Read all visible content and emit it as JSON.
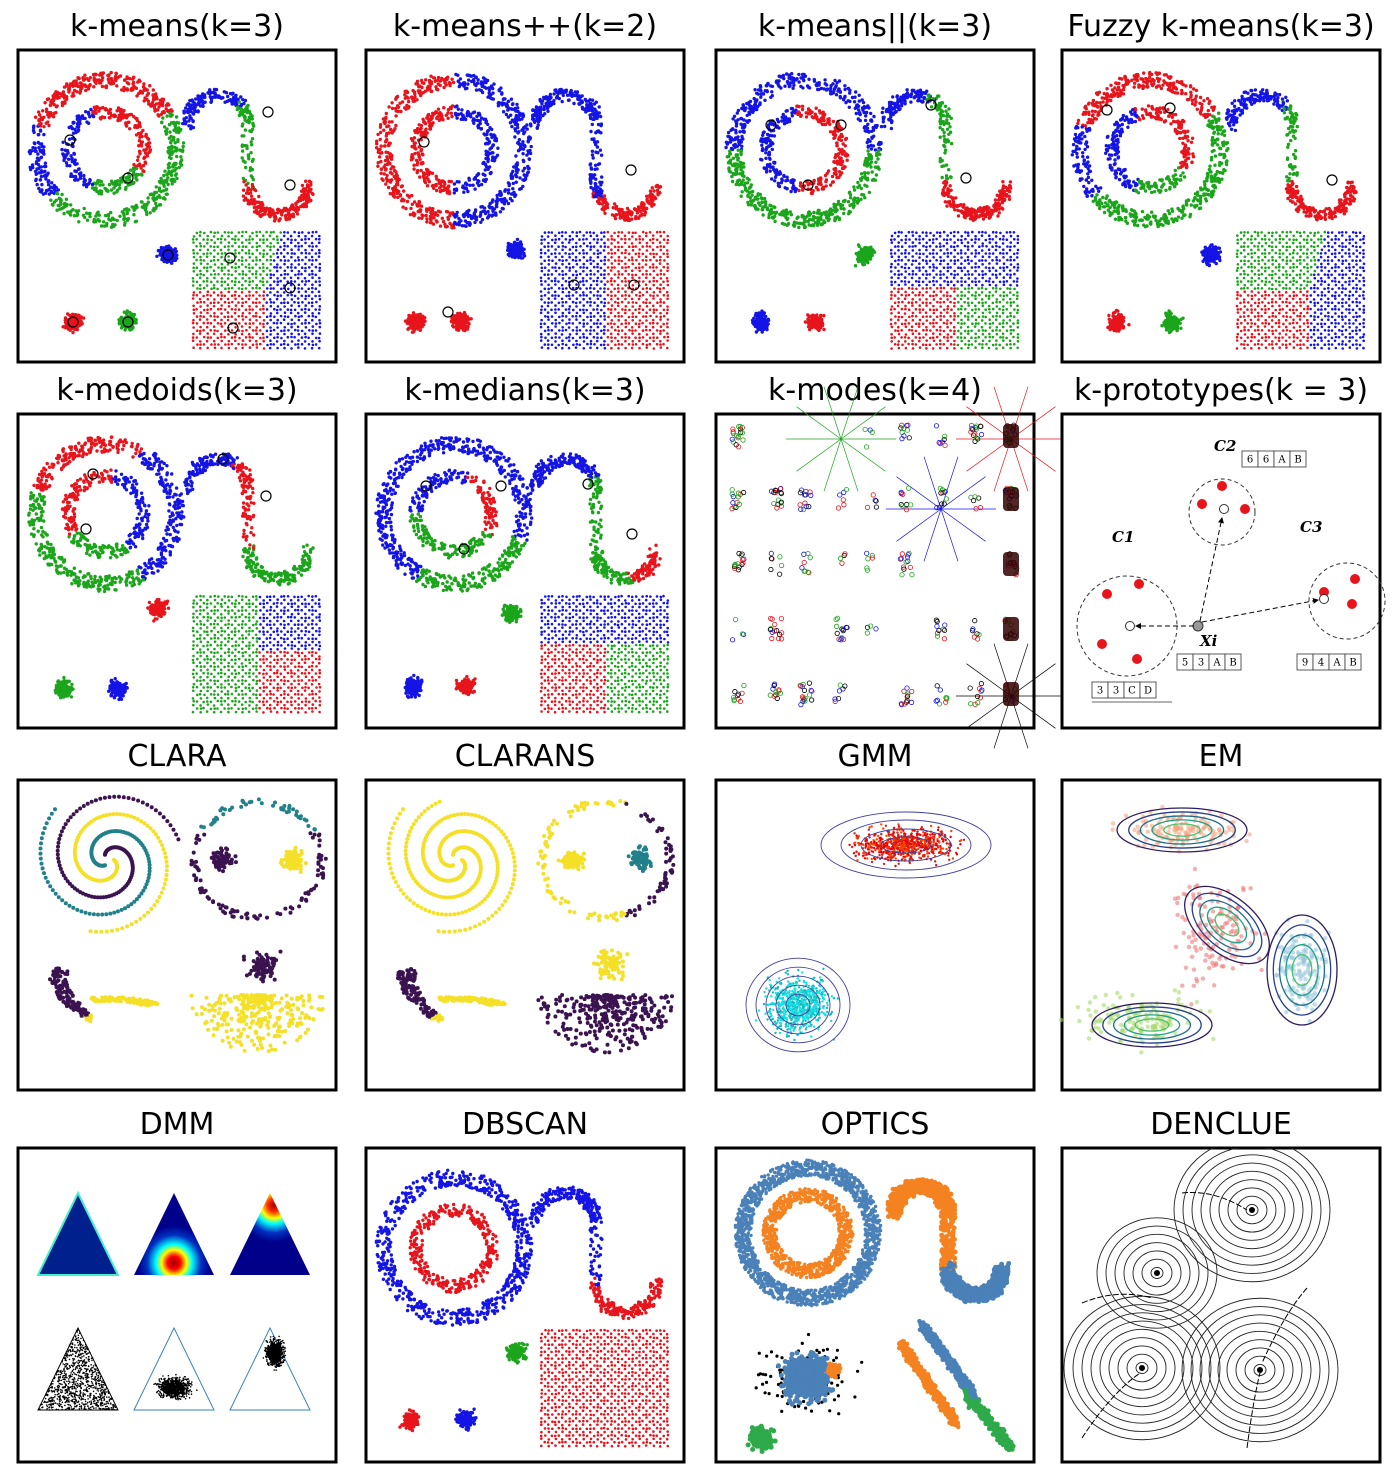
{
  "panels": [
    {
      "title": "k-means(k=3)"
    },
    {
      "title": "k-means++(k=2)"
    },
    {
      "title": "k-means||(k=3)"
    },
    {
      "title": "Fuzzy k-means(k=3)"
    },
    {
      "title": "k-medoids(k=3)"
    },
    {
      "title": "k-medians(k=3)"
    },
    {
      "title": "k-modes(k=4)"
    },
    {
      "title": "k-prototypes(k = 3)"
    },
    {
      "title": "CLARA"
    },
    {
      "title": "CLARANS"
    },
    {
      "title": "GMM"
    },
    {
      "title": "EM"
    },
    {
      "title": "DMM"
    },
    {
      "title": "DBSCAN"
    },
    {
      "title": "OPTICS"
    },
    {
      "title": "DENCLUE"
    }
  ],
  "k_prototypes": {
    "clusters": [
      "C1",
      "C2",
      "C3"
    ],
    "point": "Xi",
    "boxes": [
      [
        "6",
        "6",
        "A",
        "B"
      ],
      [
        "5",
        "3",
        "A",
        "B"
      ],
      [
        "9",
        "4",
        "A",
        "B"
      ],
      [
        "3",
        "3",
        "C",
        "D"
      ]
    ]
  }
}
